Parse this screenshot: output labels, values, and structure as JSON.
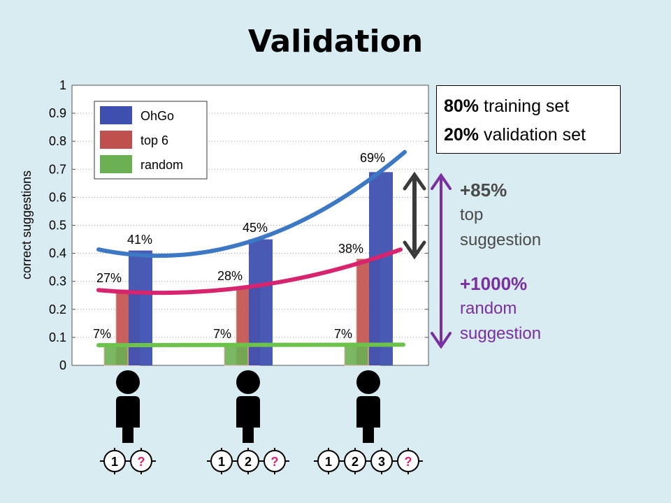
{
  "slide_title": "Validation",
  "info_box": {
    "line1_bold": "80%",
    "line1_rest": " training set",
    "line2_bold": "20%",
    "line2_rest": " validation set"
  },
  "annotation_top": {
    "value": "+85%",
    "line1": "top",
    "line2": "suggestion",
    "color": "#4a4a4a"
  },
  "annotation_random": {
    "value": "+1000%",
    "line1": "random",
    "line2": "suggestion",
    "color": "#7a2fa1"
  },
  "chart_data": {
    "type": "bar",
    "ylabel": "correct  suggestions",
    "ylim": [
      0,
      1
    ],
    "yticks": [
      "0",
      "0.1",
      "0.2",
      "0.3",
      "0.4",
      "0.5",
      "0.6",
      "0.7",
      "0.8",
      "0.9",
      "1"
    ],
    "grid": "horizontal dotted",
    "legend_position": "top-left",
    "categories": [
      "1 known",
      "2 known",
      "3 known"
    ],
    "series": [
      {
        "name": "OhGo",
        "color": "#3f51b0",
        "values": [
          0.41,
          0.45,
          0.69
        ],
        "labels": [
          "41%",
          "45%",
          "69%"
        ]
      },
      {
        "name": "top 6",
        "color": "#c0504d",
        "values": [
          0.27,
          0.28,
          0.38
        ],
        "labels": [
          "27%",
          "28%",
          "38%"
        ]
      },
      {
        "name": "random",
        "color": "#6aaf52",
        "values": [
          0.07,
          0.07,
          0.07
        ],
        "labels": [
          "7%",
          "7%",
          "7%"
        ]
      }
    ],
    "trend_colors": {
      "OhGo": "#3d78c4",
      "top 6": "#d6246e",
      "random": "#6cc24a"
    },
    "question_mark": "?",
    "user_badges": [
      [
        "1"
      ],
      [
        "1",
        "2"
      ],
      [
        "1",
        "2",
        "3"
      ]
    ]
  }
}
